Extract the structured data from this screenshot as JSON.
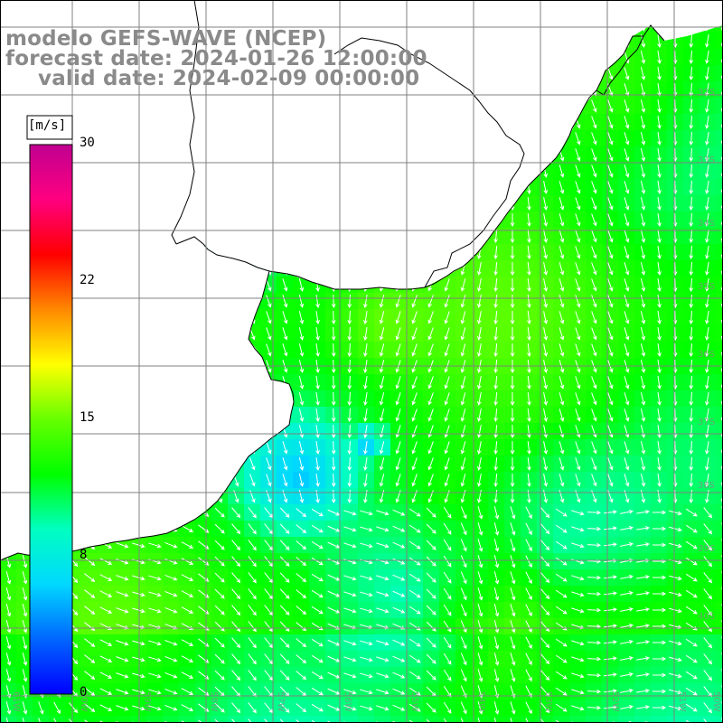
{
  "title": {
    "line1": "modelo GEFS-WAVE (NCEP)",
    "line2": "forecast date: 2024-01-26 12:00:00",
    "line3": "valid date: 2024-02-09 00:00:00"
  },
  "colorbar": {
    "unit": "[m/s]",
    "ticks": [
      "30",
      "22",
      "15",
      "8",
      "0"
    ],
    "tick_values": [
      30,
      22,
      15,
      8,
      0
    ],
    "colors": [
      "#0000ff",
      "#0066ff",
      "#00d8ff",
      "#00ffc0",
      "#00ff00",
      "#66ff00",
      "#ffff00",
      "#ff8800",
      "#ff0000",
      "#ff0080",
      "#c00090"
    ]
  },
  "map": {
    "land_color": "#ffffff",
    "coastline_color": "#000000",
    "grid_color": "#808080",
    "lon_labels": [
      "61W",
      "60W",
      "59W",
      "58W",
      "57W",
      "56W",
      "55W",
      "54W",
      "53W",
      "52W",
      "51W",
      "50W"
    ],
    "lat_labels": [
      "32S",
      "33S",
      "34S",
      "35S",
      "36S",
      "37S",
      "38S",
      "39S",
      "40S"
    ]
  }
}
